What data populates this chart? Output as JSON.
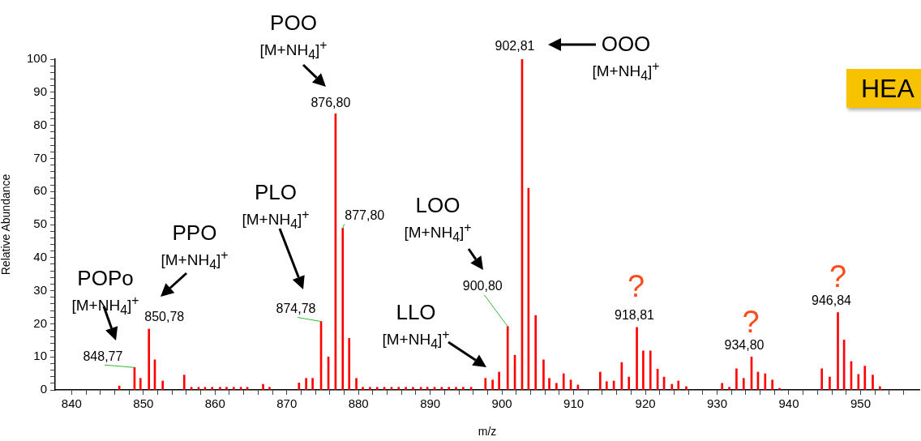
{
  "chart_data": {
    "type": "bar",
    "xlabel": "m/z",
    "ylabel": "Relative Abundance",
    "x": [
      846.65,
      848.77,
      849.6,
      850.78,
      851.6,
      852.7,
      855.7,
      856.7,
      857.7,
      858.6,
      859.6,
      860.7,
      861.6,
      862.6,
      863.6,
      864.5,
      866.7,
      867.6,
      871.7,
      872.7,
      873.6,
      874.78,
      875.8,
      876.8,
      877.8,
      878.7,
      879.7,
      880.6,
      881.6,
      882.6,
      883.6,
      884.6,
      885.6,
      886.6,
      887.6,
      888.7,
      889.6,
      890.6,
      891.6,
      892.6,
      893.6,
      894.6,
      895.7,
      897.7,
      898.7,
      899.6,
      900.8,
      901.8,
      902.81,
      903.7,
      904.7,
      905.8,
      906.6,
      907.6,
      908.6,
      909.6,
      910.6,
      913.7,
      914.6,
      915.6,
      916.7,
      917.7,
      918.81,
      919.7,
      920.7,
      921.7,
      922.6,
      923.7,
      924.6,
      925.7,
      930.7,
      931.7,
      932.7,
      933.7,
      934.8,
      935.7,
      936.7,
      937.7,
      938.7,
      944.6,
      945.7,
      946.84,
      947.7,
      948.7,
      949.7,
      950.6,
      951.7,
      952.7
    ],
    "series": [
      {
        "color": "#ff0000",
        "values": [
          1.2,
          6.8,
          3.5,
          18.4,
          9.1,
          2.7,
          4.5,
          0.8,
          0.8,
          0.8,
          0.8,
          0.8,
          0.8,
          0.8,
          0.8,
          0.8,
          1.7,
          0.8,
          2.1,
          3.5,
          3.5,
          20.7,
          10.0,
          83.5,
          48.9,
          15.6,
          3.5,
          0.8,
          0.8,
          0.8,
          0.8,
          0.8,
          0.8,
          0.8,
          0.8,
          0.8,
          0.8,
          0.8,
          0.8,
          0.8,
          0.8,
          0.8,
          0.8,
          3.5,
          3.0,
          5.4,
          19.2,
          10.5,
          100,
          61.0,
          22.5,
          9.1,
          3.5,
          2.0,
          4.9,
          3.0,
          1.5,
          5.4,
          2.5,
          2.7,
          8.3,
          3.9,
          18.9,
          11.8,
          11.8,
          6.3,
          3.9,
          1.7,
          2.7,
          1.0,
          2.0,
          0.8,
          6.4,
          3.5,
          10.0,
          5.4,
          4.9,
          3.0,
          0.5,
          6.4,
          3.9,
          23.4,
          15.1,
          8.6,
          4.7,
          7.2,
          4.5,
          1.0
        ]
      }
    ],
    "xlim": [
      837.7,
      958.2
    ],
    "xticks": [
      840,
      {
        "value": 842,
        "label": null
      },
      {
        "value": 844,
        "label": null
      },
      {
        "value": 846,
        "label": null
      },
      {
        "value": 848,
        "label": null
      },
      850,
      {
        "value": 852,
        "label": null
      },
      {
        "value": 854,
        "label": null
      },
      {
        "value": 856,
        "label": null
      },
      {
        "value": 858,
        "label": null
      },
      860,
      {
        "value": 862,
        "label": null
      },
      {
        "value": 864,
        "label": null
      },
      {
        "value": 866,
        "label": null
      },
      {
        "value": 868,
        "label": null
      },
      870,
      {
        "value": 872,
        "label": null
      },
      {
        "value": 874,
        "label": null
      },
      {
        "value": 876,
        "label": null
      },
      {
        "value": 878,
        "label": null
      },
      880,
      {
        "value": 882,
        "label": null
      },
      {
        "value": 884,
        "label": null
      },
      {
        "value": 886,
        "label": null
      },
      {
        "value": 888,
        "label": null
      },
      890,
      {
        "value": 892,
        "label": null
      },
      {
        "value": 894,
        "label": null
      },
      {
        "value": 896,
        "label": null
      },
      {
        "value": 898,
        "label": null
      },
      900,
      {
        "value": 902,
        "label": null
      },
      {
        "value": 904,
        "label": null
      },
      {
        "value": 906,
        "label": null
      },
      {
        "value": 908,
        "label": null
      },
      910,
      {
        "value": 912,
        "label": null
      },
      {
        "value": 914,
        "label": null
      },
      {
        "value": 916,
        "label": null
      },
      {
        "value": 918,
        "label": null
      },
      920,
      {
        "value": 922,
        "label": null
      },
      {
        "value": 924,
        "label": null
      },
      {
        "value": 926,
        "label": null
      },
      {
        "value": 928,
        "label": null
      },
      930,
      {
        "value": 932,
        "label": null
      },
      {
        "value": 934,
        "label": null
      },
      {
        "value": 936,
        "label": null
      },
      {
        "value": 938,
        "label": null
      },
      940,
      {
        "value": 942,
        "label": null
      },
      {
        "value": 944,
        "label": null
      },
      {
        "value": 946,
        "label": null
      },
      {
        "value": 948,
        "label": null
      },
      950,
      {
        "value": 952,
        "label": null
      },
      {
        "value": 954,
        "label": null
      },
      {
        "value": 956,
        "label": null
      }
    ],
    "ylim": [
      0,
      100
    ],
    "yticks": [
      0,
      {
        "value": 2,
        "label": null
      },
      {
        "value": 4,
        "label": null
      },
      {
        "value": 6,
        "label": null
      },
      {
        "value": 8,
        "label": null
      },
      10,
      {
        "value": 12,
        "label": null
      },
      {
        "value": 14,
        "label": null
      },
      {
        "value": 16,
        "label": null
      },
      {
        "value": 18,
        "label": null
      },
      20,
      {
        "value": 22,
        "label": null
      },
      {
        "value": 24,
        "label": null
      },
      {
        "value": 26,
        "label": null
      },
      {
        "value": 28,
        "label": null
      },
      30,
      {
        "value": 32,
        "label": null
      },
      {
        "value": 34,
        "label": null
      },
      {
        "value": 36,
        "label": null
      },
      {
        "value": 38,
        "label": null
      },
      40,
      {
        "value": 42,
        "label": null
      },
      {
        "value": 44,
        "label": null
      },
      {
        "value": 46,
        "label": null
      },
      {
        "value": 48,
        "label": null
      },
      50,
      {
        "value": 52,
        "label": null
      },
      {
        "value": 54,
        "label": null
      },
      {
        "value": 56,
        "label": null
      },
      {
        "value": 58,
        "label": null
      },
      60,
      {
        "value": 62,
        "label": null
      },
      {
        "value": 64,
        "label": null
      },
      {
        "value": 66,
        "label": null
      },
      {
        "value": 68,
        "label": null
      },
      70,
      {
        "value": 72,
        "label": null
      },
      {
        "value": 74,
        "label": null
      },
      {
        "value": 76,
        "label": null
      },
      {
        "value": 78,
        "label": null
      },
      80,
      {
        "value": 82,
        "label": null
      },
      {
        "value": 84,
        "label": null
      },
      {
        "value": 86,
        "label": null
      },
      {
        "value": 88,
        "label": null
      },
      90,
      {
        "value": 92,
        "label": null
      },
      {
        "value": 94,
        "label": null
      },
      {
        "value": 96,
        "label": null
      },
      {
        "value": 98,
        "label": null
      },
      100
    ],
    "legend": false,
    "annotations": [
      {
        "text": "848,77",
        "x": 848.77,
        "y": 6.8
      },
      {
        "text": "850,78",
        "x": 850.78,
        "y": 18.4
      },
      {
        "text": "874,78",
        "x": 874.78,
        "y": 20.7
      },
      {
        "text": "876,80",
        "x": 876.8,
        "y": 83.5
      },
      {
        "text": "877,80",
        "x": 877.8,
        "y": 48.9
      },
      {
        "text": "900,80",
        "x": 900.8,
        "y": 19.2
      },
      {
        "text": "902,81",
        "x": 902.81,
        "y": 100
      },
      {
        "text": "918,81",
        "x": 918.81,
        "y": 18.9
      },
      {
        "text": "934,80",
        "x": 934.8,
        "y": 10.0
      },
      {
        "text": "946,84",
        "x": 946.84,
        "y": 23.4
      },
      "POPo\n[M+NH$_{4}$]$^{+}$",
      "PPO\n[M+NH$_{4}$]$^{+}$",
      "PLO\n[M+NH$_{4}$]$^{+}$",
      "POO\n[M+NH$_{4}$]$^{+}$",
      "LOO\n[M+NH$_{4}$]$^{+}$",
      "LLO\n[M+NH$_{4}$]$^{+}$",
      "OOO\n[M+NH$_{4}$]$^{+}$",
      {
        "text": "?",
        "x": 918.81,
        "y": 18.9
      },
      {
        "text": "?",
        "x": 934.8,
        "y": 10.0
      },
      {
        "text": "?",
        "x": 946.84,
        "y": 23.4
      },
      "HEA"
    ]
  }
}
